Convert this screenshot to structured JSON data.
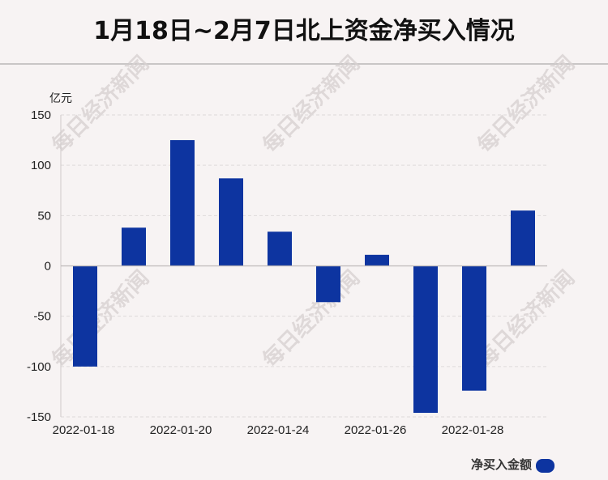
{
  "header": {
    "title": "1月18日~2月7日北上资金净买入情况"
  },
  "watermark": "每日经济新闻",
  "chart_data": {
    "type": "bar",
    "categories": [
      "2022-01-18",
      "",
      "2022-01-20",
      "",
      "2022-01-24",
      "",
      "2022-01-26",
      "",
      "2022-01-28",
      ""
    ],
    "x_tick_labels": [
      "2022-01-18",
      "2022-01-20",
      "2022-01-24",
      "2022-01-26",
      "2022-01-28"
    ],
    "series": [
      {
        "name": "净买入金额",
        "values": [
          -100,
          38,
          125,
          87,
          34,
          -36,
          11,
          -146,
          -124,
          55
        ],
        "color": "#0d34a0"
      }
    ],
    "unit": "亿元",
    "ylim": [
      -150,
      150
    ],
    "yticks": [
      150,
      100,
      50,
      0,
      -50,
      -100,
      -150
    ],
    "grid": true,
    "legend": "bottom-right"
  }
}
